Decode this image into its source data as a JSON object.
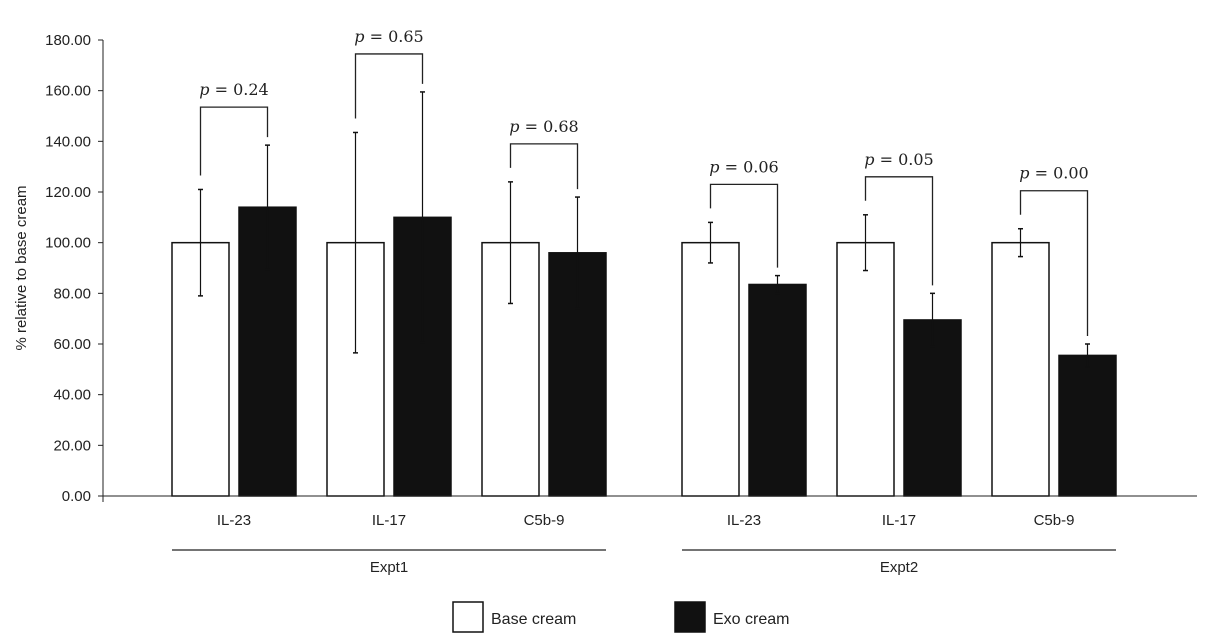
{
  "chart_data": {
    "type": "bar",
    "ylabel": "% relative to base cream",
    "xlabel": "",
    "ylim": [
      0,
      180
    ],
    "yticks": [
      "0.00",
      "20.00",
      "40.00",
      "60.00",
      "80.00",
      "100.00",
      "120.00",
      "140.00",
      "160.00",
      "180.00"
    ],
    "grid": false,
    "legend_position": "bottom",
    "colors": {
      "base": "#ffffff",
      "exo": "#111111",
      "stroke": "#111111"
    },
    "groups": [
      {
        "name": "Expt1",
        "categories": [
          {
            "name": "IL-23",
            "base": 100,
            "base_err": 21,
            "exo": 114,
            "exo_err": 24.5,
            "p_text": "= 0.24"
          },
          {
            "name": "IL-17",
            "base": 100,
            "base_err": 43.5,
            "exo": 110,
            "exo_err": 49.5,
            "p_text": "= 0.65"
          },
          {
            "name": "C5b-9",
            "base": 100,
            "base_err": 24,
            "exo": 96,
            "exo_err": 22,
            "p_text": "= 0.68"
          }
        ]
      },
      {
        "name": "Expt2",
        "categories": [
          {
            "name": "IL-23",
            "base": 100,
            "base_err": 8,
            "exo": 83.5,
            "exo_err": 3.5,
            "p_text": "= 0.06"
          },
          {
            "name": "IL-17",
            "base": 100,
            "base_err": 11,
            "exo": 69.5,
            "exo_err": 10.5,
            "p_text": "= 0.05"
          },
          {
            "name": "C5b-9",
            "base": 100,
            "base_err": 5.5,
            "exo": 55.5,
            "exo_err": 4.5,
            "p_text": "= 0.00"
          }
        ]
      }
    ],
    "p_symbol": "p",
    "series": [
      {
        "name": "Base cream",
        "key": "base"
      },
      {
        "name": "Exo cream",
        "key": "exo"
      }
    ]
  }
}
